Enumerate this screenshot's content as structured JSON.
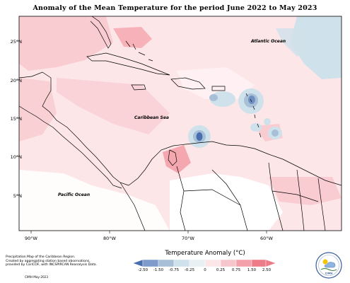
{
  "map": {
    "title": "Anomaly of the Mean Temperature for the period June 2022 to May 2023",
    "ocean_labels": [
      "Atlantic Ocean",
      "Caribbean Sea",
      "Pacific Ocean"
    ],
    "lat_labels": [
      "25°N",
      "20°N",
      "15°N",
      "10°N",
      "5°N"
    ],
    "lon_labels": [
      "90°W",
      "80°W",
      "70°W",
      "60°W"
    ]
  },
  "legend": {
    "title": "Temperature Anomaly (°C)",
    "ticks": [
      "-2.50",
      "-1.50",
      "-0.75",
      "-0.25",
      "0",
      "0.25",
      "0.75",
      "1.50",
      "2.50"
    ],
    "colors": [
      "#4a6fae",
      "#7f9bcb",
      "#a7c0d8",
      "#cfe1ea",
      "#ffffff",
      "#fde6e8",
      "#f7c6cc",
      "#f4a0aa",
      "#ee7b88"
    ]
  },
  "footer": {
    "lines": [
      "Precipitation Map of the Caribbean Region.",
      "Created by aggregating station based observations,",
      "provided by CariCOF, with INCSPIRCAN Reanalysis Data."
    ],
    "credit": "CIMH May-2023",
    "logo_text": "CIMH"
  },
  "colors": {
    "background": "#ffffff",
    "warm_light": "#fde6e8",
    "warm_mid": "#f7c6cc",
    "warm_strong": "#f4a0aa",
    "cool_light": "#cfe1ea",
    "cool_mid": "#a7c0d8",
    "cool_strong": "#4a6fae",
    "land_line": "#000000"
  }
}
